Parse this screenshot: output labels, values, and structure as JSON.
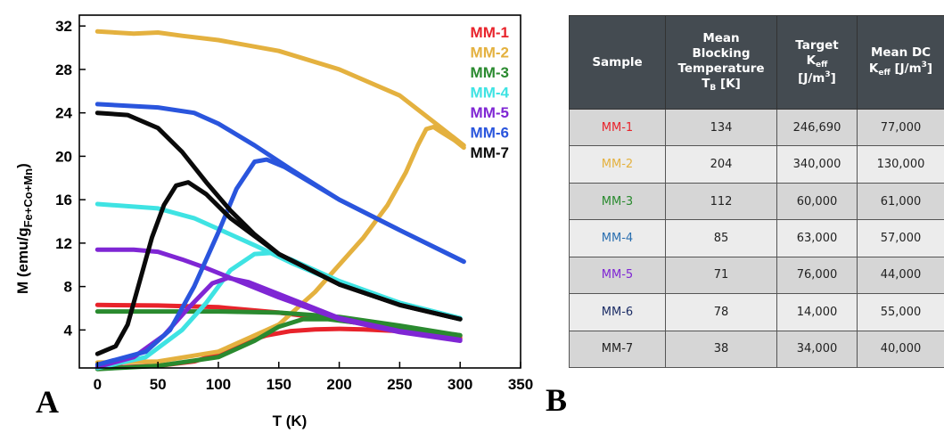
{
  "panel_labels": {
    "a": "A",
    "b": "B"
  },
  "chart_data": {
    "type": "line",
    "xlabel": "T (K)",
    "ylabel_main": "M (emu/g",
    "ylabel_sub": "Fe+Co+Mn",
    "ylabel_end": ")",
    "xlim": [
      -15,
      350
    ],
    "ylim": [
      0.5,
      33
    ],
    "xticks": [
      0,
      50,
      100,
      150,
      200,
      250,
      300,
      350
    ],
    "yticks": [
      4,
      8,
      12,
      16,
      20,
      24,
      28,
      32
    ],
    "grid": false,
    "legend_position": "top-right",
    "series": [
      {
        "name": "MM-1",
        "color": "#e8232b",
        "zfc": [
          [
            0,
            0.5
          ],
          [
            50,
            0.7
          ],
          [
            80,
            1.1
          ],
          [
            100,
            1.8
          ],
          [
            120,
            2.8
          ],
          [
            140,
            3.5
          ],
          [
            160,
            3.9
          ],
          [
            180,
            4.05
          ],
          [
            200,
            4.1
          ],
          [
            220,
            4.05
          ],
          [
            250,
            3.9
          ],
          [
            280,
            3.6
          ],
          [
            300,
            3.4
          ]
        ],
        "fc": [
          [
            0,
            6.3
          ],
          [
            50,
            6.25
          ],
          [
            100,
            6.1
          ],
          [
            150,
            5.6
          ],
          [
            200,
            4.9
          ],
          [
            250,
            4.1
          ],
          [
            300,
            3.2
          ]
        ]
      },
      {
        "name": "MM-2",
        "color": "#e4b13f",
        "zfc": [
          [
            0,
            1.0
          ],
          [
            50,
            1.1
          ],
          [
            100,
            2.0
          ],
          [
            150,
            4.5
          ],
          [
            180,
            7.5
          ],
          [
            200,
            10.0
          ],
          [
            220,
            12.5
          ],
          [
            240,
            15.5
          ],
          [
            255,
            18.5
          ],
          [
            265,
            21.0
          ],
          [
            272,
            22.5
          ],
          [
            278,
            22.7
          ],
          [
            285,
            22.2
          ],
          [
            295,
            21.5
          ],
          [
            303,
            20.8
          ]
        ],
        "fc": [
          [
            0,
            31.5
          ],
          [
            30,
            31.3
          ],
          [
            50,
            31.4
          ],
          [
            70,
            31.1
          ],
          [
            100,
            30.7
          ],
          [
            150,
            29.7
          ],
          [
            200,
            28.0
          ],
          [
            250,
            25.6
          ],
          [
            280,
            23.0
          ],
          [
            303,
            21.0
          ]
        ]
      },
      {
        "name": "MM-3",
        "color": "#2a8a2f",
        "zfc": [
          [
            0,
            0.4
          ],
          [
            50,
            0.7
          ],
          [
            100,
            1.5
          ],
          [
            130,
            3.0
          ],
          [
            150,
            4.3
          ],
          [
            170,
            5.0
          ],
          [
            190,
            5.0
          ],
          [
            220,
            4.6
          ],
          [
            260,
            4.0
          ],
          [
            300,
            3.5
          ]
        ],
        "fc": [
          [
            0,
            5.7
          ],
          [
            100,
            5.7
          ],
          [
            150,
            5.6
          ],
          [
            200,
            5.2
          ],
          [
            250,
            4.4
          ],
          [
            300,
            3.5
          ]
        ]
      },
      {
        "name": "MM-4",
        "color": "#3fe3e3",
        "zfc": [
          [
            0,
            0.5
          ],
          [
            40,
            1.5
          ],
          [
            70,
            4.0
          ],
          [
            90,
            6.5
          ],
          [
            110,
            9.5
          ],
          [
            130,
            11.0
          ],
          [
            145,
            11.1
          ],
          [
            160,
            10.5
          ],
          [
            200,
            8.5
          ],
          [
            250,
            6.5
          ],
          [
            300,
            5.1
          ]
        ],
        "fc": [
          [
            0,
            15.6
          ],
          [
            50,
            15.2
          ],
          [
            80,
            14.3
          ],
          [
            100,
            13.3
          ],
          [
            130,
            11.8
          ],
          [
            160,
            10.2
          ],
          [
            200,
            8.3
          ],
          [
            250,
            6.5
          ],
          [
            300,
            5.0
          ]
        ]
      },
      {
        "name": "MM-5",
        "color": "#7f26d4",
        "zfc": [
          [
            0,
            0.6
          ],
          [
            30,
            1.5
          ],
          [
            55,
            3.5
          ],
          [
            75,
            6.0
          ],
          [
            95,
            8.3
          ],
          [
            108,
            8.8
          ],
          [
            125,
            8.4
          ],
          [
            150,
            7.3
          ],
          [
            200,
            5.1
          ],
          [
            250,
            3.9
          ],
          [
            300,
            3.1
          ]
        ],
        "fc": [
          [
            0,
            11.4
          ],
          [
            30,
            11.4
          ],
          [
            50,
            11.2
          ],
          [
            70,
            10.5
          ],
          [
            90,
            9.7
          ],
          [
            110,
            8.8
          ],
          [
            150,
            7.0
          ],
          [
            200,
            5.0
          ],
          [
            250,
            3.8
          ],
          [
            300,
            3.0
          ]
        ]
      },
      {
        "name": "MM-6",
        "color": "#2a55dd",
        "zfc": [
          [
            0,
            0.8
          ],
          [
            40,
            2.0
          ],
          [
            60,
            4.0
          ],
          [
            80,
            8.0
          ],
          [
            100,
            13.0
          ],
          [
            115,
            17.0
          ],
          [
            130,
            19.5
          ],
          [
            140,
            19.7
          ],
          [
            155,
            19.0
          ],
          [
            200,
            16.0
          ],
          [
            250,
            13.2
          ],
          [
            303,
            10.3
          ]
        ],
        "fc": [
          [
            0,
            24.8
          ],
          [
            50,
            24.5
          ],
          [
            80,
            24.0
          ],
          [
            100,
            23.0
          ],
          [
            130,
            21.0
          ],
          [
            160,
            18.8
          ],
          [
            200,
            16.0
          ],
          [
            250,
            13.2
          ],
          [
            303,
            10.3
          ]
        ]
      },
      {
        "name": "MM-7",
        "color": "#0a0a0a",
        "zfc": [
          [
            0,
            1.8
          ],
          [
            15,
            2.5
          ],
          [
            25,
            4.5
          ],
          [
            35,
            8.5
          ],
          [
            45,
            12.5
          ],
          [
            55,
            15.5
          ],
          [
            65,
            17.3
          ],
          [
            75,
            17.6
          ],
          [
            90,
            16.5
          ],
          [
            110,
            14.3
          ],
          [
            150,
            11.0
          ],
          [
            200,
            8.2
          ],
          [
            250,
            6.3
          ],
          [
            300,
            5.0
          ]
        ],
        "fc": [
          [
            0,
            24.0
          ],
          [
            25,
            23.8
          ],
          [
            50,
            22.6
          ],
          [
            70,
            20.4
          ],
          [
            90,
            17.6
          ],
          [
            110,
            15.0
          ],
          [
            130,
            12.8
          ],
          [
            150,
            11.0
          ],
          [
            200,
            8.2
          ],
          [
            250,
            6.3
          ],
          [
            300,
            5.0
          ]
        ]
      }
    ]
  },
  "table": {
    "headers": {
      "sample": "Sample",
      "tb_line1": "Mean",
      "tb_line2": "Blocking",
      "tb_line3": "Temperature",
      "tb_sym": "T",
      "tb_sub": "B",
      "tb_unit": " [K]",
      "target_line1": "Target",
      "target_sym": "K",
      "target_sub": "eff",
      "target_unit": "[J/m",
      "target_sup": "3",
      "target_close": "]",
      "dc_line1": "Mean DC",
      "dc_sym": "K",
      "dc_sub": "eff",
      "dc_unit": " [J/m",
      "dc_sup": "3",
      "dc_close": "]"
    },
    "rows": [
      {
        "sample": "MM-1",
        "color": "#e8232b",
        "tb": "134",
        "target": "246,690",
        "dc": "77,000"
      },
      {
        "sample": "MM-2",
        "color": "#e4b13f",
        "tb": "204",
        "target": "340,000",
        "dc": "130,000"
      },
      {
        "sample": "MM-3",
        "color": "#2a8a2f",
        "tb": "112",
        "target": "60,000",
        "dc": "61,000"
      },
      {
        "sample": "MM-4",
        "color": "#2a6fb0",
        "tb": "85",
        "target": "63,000",
        "dc": "57,000"
      },
      {
        "sample": "MM-5",
        "color": "#7f26d4",
        "tb": "71",
        "target": "76,000",
        "dc": "44,000"
      },
      {
        "sample": "MM-6",
        "color": "#1c2d66",
        "tb": "78",
        "target": "14,000",
        "dc": "55,000"
      },
      {
        "sample": "MM-7",
        "color": "#222222",
        "tb": "38",
        "target": "34,000",
        "dc": "40,000"
      }
    ]
  }
}
